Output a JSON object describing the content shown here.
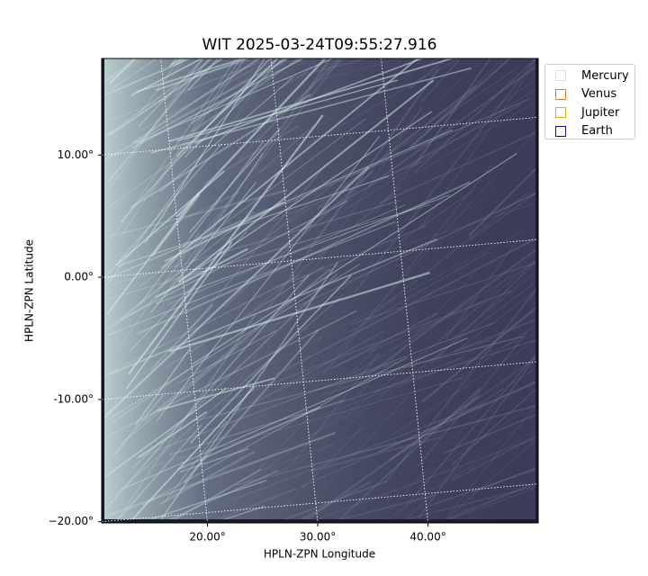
{
  "chart_data": {
    "type": "image",
    "title": "WIT 2025-03-24T09:55:27.916",
    "x_label": "HPLN-ZPN Longitude",
    "y_label": "HPLN-ZPN Latitude",
    "xlim": [
      10.4,
      50.0
    ],
    "ylim": [
      -20.1,
      17.9
    ],
    "xticks": [
      {
        "value": 20,
        "label": "20.00°"
      },
      {
        "value": 30,
        "label": "30.00°"
      },
      {
        "value": 40,
        "label": "40.00°"
      }
    ],
    "yticks": [
      {
        "value": 10,
        "label": "10.00°"
      },
      {
        "value": 0,
        "label": "0.00°"
      },
      {
        "value": -10,
        "label": "-10.00°"
      },
      {
        "value": -20,
        "label": "−20.00°"
      }
    ],
    "grid": true,
    "legend": "upper right outside",
    "series": [
      {
        "name": "Mercury",
        "color": "#dddddd"
      },
      {
        "name": "Venus",
        "color": "#e07a2e"
      },
      {
        "name": "Jupiter",
        "color": "#e0b020"
      },
      {
        "name": "Earth",
        "color": "#101070"
      }
    ]
  }
}
